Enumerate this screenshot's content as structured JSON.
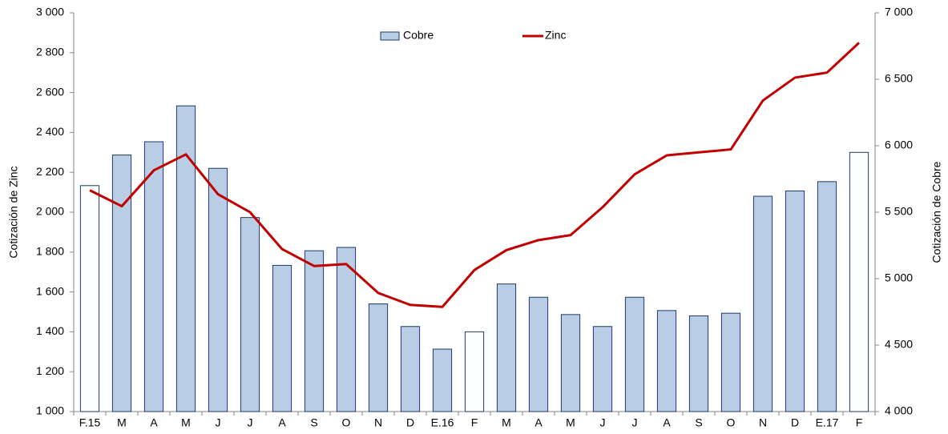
{
  "chart_data": {
    "type": "bar",
    "categories": [
      "F.15",
      "M",
      "A",
      "M",
      "J",
      "J",
      "A",
      "S",
      "O",
      "N",
      "D",
      "E.16",
      "F",
      "M",
      "A",
      "M",
      "J",
      "J",
      "A",
      "S",
      "O",
      "N",
      "D",
      "E.17",
      "F"
    ],
    "series": [
      {
        "name": "Cobre",
        "type": "bar",
        "axis": "y2",
        "color": "#b9cde5",
        "stroke": "#1f3864",
        "colors": [
          "#ffffff",
          "#b9cde5",
          "#b9cde5",
          "#b9cde5",
          "#b9cde5",
          "#b9cde5",
          "#b9cde5",
          "#b9cde5",
          "#b9cde5",
          "#b9cde5",
          "#b9cde5",
          "#b9cde5",
          "#ffffff",
          "#b9cde5",
          "#b9cde5",
          "#b9cde5",
          "#b9cde5",
          "#b9cde5",
          "#b9cde5",
          "#b9cde5",
          "#b9cde5",
          "#b9cde5",
          "#b9cde5",
          "#b9cde5",
          "#ffffff"
        ],
        "values": [
          5700,
          5930,
          6030,
          6300,
          5830,
          5460,
          5100,
          5210,
          5235,
          4810,
          4640,
          4470,
          4600,
          4960,
          4860,
          4730,
          4640,
          4860,
          4760,
          4720,
          4740,
          5620,
          5660,
          5730,
          5950
        ]
      },
      {
        "name": "Zinc",
        "type": "line",
        "color": "#c00000",
        "values": [
          2110,
          2030,
          2210,
          2290,
          2090,
          2000,
          1815,
          1730,
          1740,
          1595,
          1535,
          1525,
          1710,
          1810,
          1860,
          1885,
          2025,
          2190,
          2285,
          2300,
          2315,
          2560,
          2675,
          2700,
          2850
        ]
      }
    ],
    "ylabel": "Cotización de Zinc",
    "y2label": "Cotización de Cobre",
    "ylim": [
      1000,
      3000
    ],
    "yticks": [
      {
        "value": 1000,
        "label": "1 000"
      },
      {
        "value": 1200,
        "label": "1 200"
      },
      {
        "value": 1400,
        "label": "1 400"
      },
      {
        "value": 1600,
        "label": "1 600"
      },
      {
        "value": 1800,
        "label": "1 800"
      },
      {
        "value": 2000,
        "label": "2 000"
      },
      {
        "value": 2200,
        "label": "2 200"
      },
      {
        "value": 2400,
        "label": "2 400"
      },
      {
        "value": 2600,
        "label": "2 600"
      },
      {
        "value": 2800,
        "label": "2 800"
      },
      {
        "value": 3000,
        "label": "3 000"
      }
    ],
    "y2lim": [
      4000,
      7000
    ],
    "y2ticks": [
      {
        "value": 4000,
        "label": "4 000"
      },
      {
        "value": 4500,
        "label": "4 500"
      },
      {
        "value": 5000,
        "label": "5 000"
      },
      {
        "value": 5500,
        "label": "5 500"
      },
      {
        "value": 6000,
        "label": "6 000"
      },
      {
        "value": 6500,
        "label": "6 500"
      },
      {
        "value": 7000,
        "label": "7 000"
      }
    ],
    "grid": false,
    "legend": "top"
  }
}
